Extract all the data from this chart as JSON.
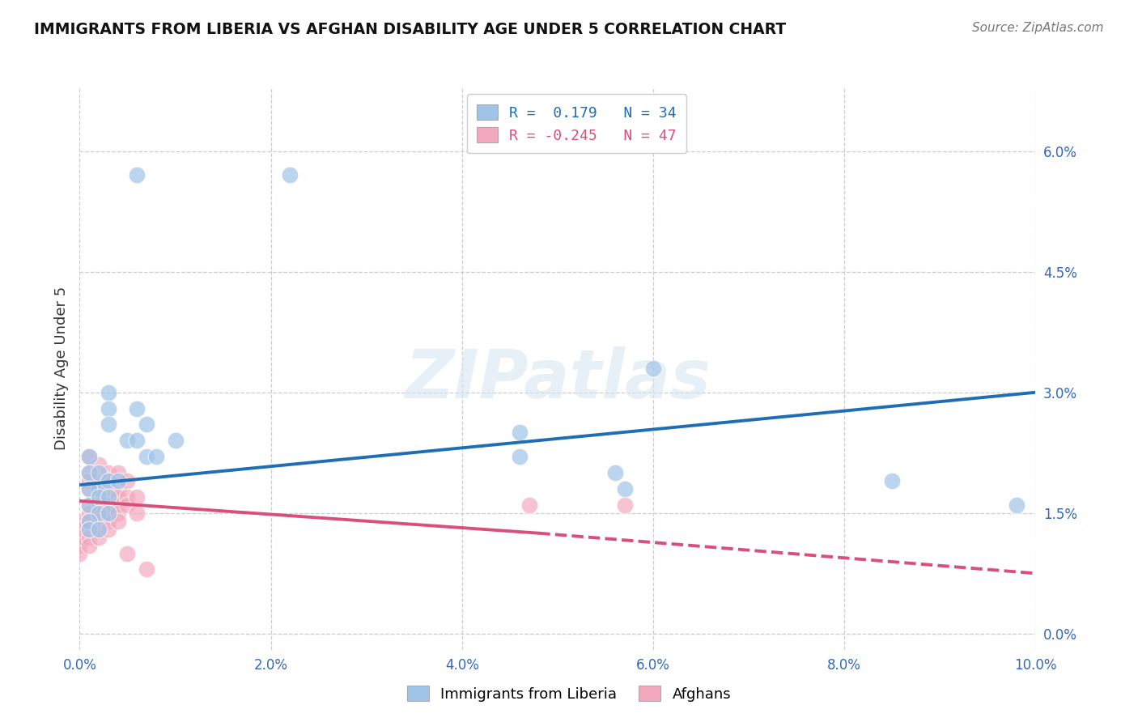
{
  "title": "IMMIGRANTS FROM LIBERIA VS AFGHAN DISABILITY AGE UNDER 5 CORRELATION CHART",
  "source": "Source: ZipAtlas.com",
  "ylabel": "Disability Age Under 5",
  "xlim": [
    0.0,
    0.1
  ],
  "ylim": [
    -0.002,
    0.068
  ],
  "xticks": [
    0.0,
    0.02,
    0.04,
    0.06,
    0.08,
    0.1
  ],
  "xtick_labels": [
    "0.0%",
    "2.0%",
    "4.0%",
    "6.0%",
    "8.0%",
    "10.0%"
  ],
  "yticks": [
    0.0,
    0.015,
    0.03,
    0.045,
    0.06
  ],
  "ytick_labels": [
    "0.0%",
    "1.5%",
    "3.0%",
    "4.5%",
    "6.0%"
  ],
  "grid_color": "#c8c8c8",
  "watermark": "ZIPatlas",
  "legend_label1": "Immigrants from Liberia",
  "legend_label2": "Afghans",
  "R1": "0.179",
  "N1": "34",
  "R2": "-0.245",
  "N2": "47",
  "blue_color": "#a0c4e8",
  "pink_color": "#f4a8be",
  "blue_line_color": "#1f6db5",
  "pink_line_color": "#d94f7a",
  "blue_scatter": [
    [
      0.006,
      0.057
    ],
    [
      0.022,
      0.057
    ],
    [
      0.003,
      0.03
    ],
    [
      0.003,
      0.028
    ],
    [
      0.003,
      0.026
    ],
    [
      0.006,
      0.028
    ],
    [
      0.007,
      0.026
    ],
    [
      0.005,
      0.024
    ],
    [
      0.006,
      0.024
    ],
    [
      0.007,
      0.022
    ],
    [
      0.008,
      0.022
    ],
    [
      0.01,
      0.024
    ],
    [
      0.001,
      0.022
    ],
    [
      0.001,
      0.02
    ],
    [
      0.002,
      0.02
    ],
    [
      0.002,
      0.018
    ],
    [
      0.003,
      0.019
    ],
    [
      0.004,
      0.019
    ],
    [
      0.001,
      0.018
    ],
    [
      0.001,
      0.016
    ],
    [
      0.002,
      0.017
    ],
    [
      0.003,
      0.017
    ],
    [
      0.002,
      0.015
    ],
    [
      0.003,
      0.015
    ],
    [
      0.001,
      0.014
    ],
    [
      0.001,
      0.013
    ],
    [
      0.002,
      0.013
    ],
    [
      0.06,
      0.033
    ],
    [
      0.046,
      0.025
    ],
    [
      0.046,
      0.022
    ],
    [
      0.056,
      0.02
    ],
    [
      0.057,
      0.018
    ],
    [
      0.085,
      0.019
    ],
    [
      0.098,
      0.016
    ]
  ],
  "pink_scatter": [
    [
      0.0,
      0.014
    ],
    [
      0.0,
      0.013
    ],
    [
      0.0,
      0.012
    ],
    [
      0.0,
      0.011
    ],
    [
      0.0,
      0.01
    ],
    [
      0.001,
      0.022
    ],
    [
      0.001,
      0.02
    ],
    [
      0.001,
      0.019
    ],
    [
      0.001,
      0.018
    ],
    [
      0.001,
      0.016
    ],
    [
      0.001,
      0.015
    ],
    [
      0.001,
      0.014
    ],
    [
      0.001,
      0.013
    ],
    [
      0.001,
      0.012
    ],
    [
      0.001,
      0.011
    ],
    [
      0.002,
      0.021
    ],
    [
      0.002,
      0.019
    ],
    [
      0.002,
      0.018
    ],
    [
      0.002,
      0.017
    ],
    [
      0.002,
      0.016
    ],
    [
      0.002,
      0.015
    ],
    [
      0.002,
      0.014
    ],
    [
      0.002,
      0.013
    ],
    [
      0.002,
      0.012
    ],
    [
      0.003,
      0.02
    ],
    [
      0.003,
      0.019
    ],
    [
      0.003,
      0.018
    ],
    [
      0.003,
      0.017
    ],
    [
      0.003,
      0.016
    ],
    [
      0.003,
      0.015
    ],
    [
      0.003,
      0.014
    ],
    [
      0.003,
      0.013
    ],
    [
      0.004,
      0.02
    ],
    [
      0.004,
      0.018
    ],
    [
      0.004,
      0.017
    ],
    [
      0.004,
      0.016
    ],
    [
      0.004,
      0.015
    ],
    [
      0.004,
      0.014
    ],
    [
      0.005,
      0.019
    ],
    [
      0.005,
      0.017
    ],
    [
      0.005,
      0.016
    ],
    [
      0.005,
      0.01
    ],
    [
      0.006,
      0.017
    ],
    [
      0.006,
      0.015
    ],
    [
      0.007,
      0.008
    ],
    [
      0.047,
      0.016
    ],
    [
      0.057,
      0.016
    ]
  ],
  "blue_line": {
    "x0": 0.0,
    "x1": 0.1,
    "y0": 0.0185,
    "y1": 0.03
  },
  "pink_line_solid": {
    "x0": 0.0,
    "x1": 0.048,
    "y0": 0.0165,
    "y1": 0.0125
  },
  "pink_line_dash": {
    "x0": 0.048,
    "x1": 0.1,
    "y0": 0.0125,
    "y1": 0.0075
  }
}
